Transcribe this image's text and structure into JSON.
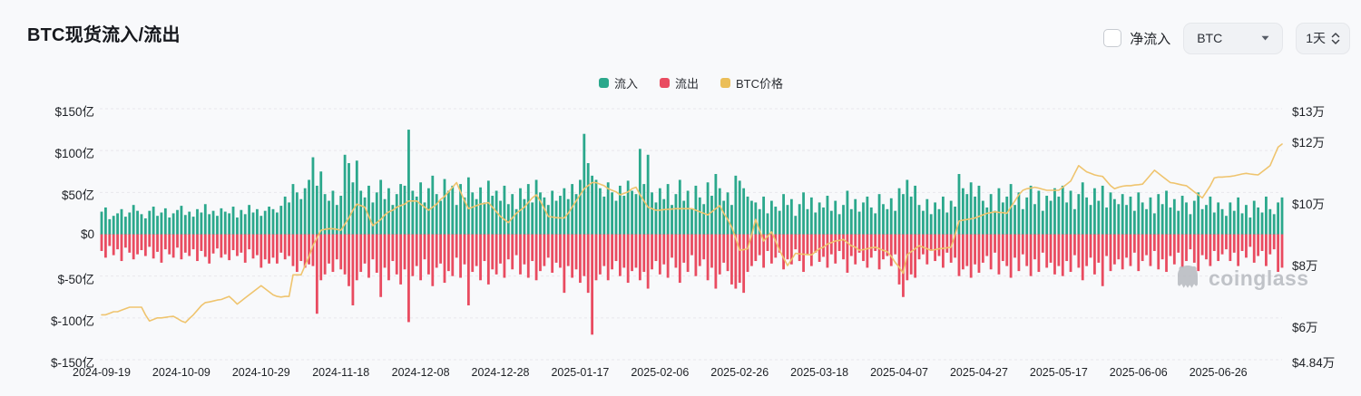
{
  "header": {
    "title": "BTC现货流入/流出",
    "net_flow_label": "净流入",
    "net_flow_checked": false,
    "coin_selector": "BTC",
    "interval_selector": "1天"
  },
  "legend": [
    {
      "label": "流入",
      "color": "#2BA88C"
    },
    {
      "label": "流出",
      "color": "#E94B60"
    },
    {
      "label": "BTC价格",
      "color": "#EBBE58"
    }
  ],
  "watermark": "coinglass",
  "colors": {
    "inflow": "#2BA88C",
    "outflow": "#E94B60",
    "price_line": "#EFC46E",
    "grid": "#e7e8ec",
    "background": "#f8f9fb"
  },
  "chart_data": {
    "type": "bar",
    "title": "BTC现货流入/流出",
    "start_date": "2024-09-19",
    "end_date": "2025-07-12",
    "interval_days": 1,
    "x_tick_labels": [
      "2024-09-19",
      "2024-10-09",
      "2024-10-29",
      "2024-11-18",
      "2024-12-08",
      "2024-12-28",
      "2025-01-17",
      "2025-02-06",
      "2025-02-26",
      "2025-03-18",
      "2025-04-07",
      "2025-04-27",
      "2025-05-17",
      "2025-06-06",
      "2025-06-26"
    ],
    "x_tick_days": [
      0,
      20,
      40,
      60,
      80,
      100,
      120,
      140,
      160,
      180,
      200,
      220,
      240,
      260,
      280
    ],
    "left_axis": {
      "unit": "亿 USD",
      "ticks": [
        "$150亿",
        "$100亿",
        "$50亿",
        "$0",
        "$-50亿",
        "$-100亿",
        "$-150亿"
      ],
      "values": [
        150,
        100,
        50,
        0,
        -50,
        -100,
        -150
      ],
      "range": [
        -150,
        150
      ],
      "grid": "dashed"
    },
    "right_axis": {
      "unit": "万 USD",
      "ticks": [
        "$13万",
        "$12万",
        "$10万",
        "$8万",
        "$6万",
        "$4.84万"
      ],
      "values": [
        13,
        12,
        10,
        8,
        6,
        4.84
      ],
      "range": [
        4.84,
        13
      ]
    },
    "legend_position": "top-center",
    "series": [
      {
        "name": "流入",
        "type": "bar",
        "axis": "left",
        "color": "#2BA88C",
        "values": [
          27,
          32,
          18,
          22,
          25,
          30,
          21,
          26,
          35,
          28,
          24,
          19,
          28,
          33,
          22,
          26,
          31,
          20,
          25,
          29,
          34,
          23,
          27,
          21,
          30,
          26,
          36,
          24,
          28,
          22,
          31,
          27,
          25,
          33,
          20,
          29,
          24,
          35,
          26,
          30,
          22,
          28,
          33,
          30,
          26,
          34,
          45,
          38,
          60,
          50,
          42,
          55,
          65,
          92,
          58,
          75,
          48,
          40,
          52,
          35,
          46,
          95,
          85,
          62,
          88,
          52,
          44,
          58,
          38,
          50,
          65,
          42,
          55,
          35,
          48,
          60,
          58,
          125,
          52,
          45,
          62,
          38,
          55,
          70,
          48,
          40,
          66,
          52,
          58,
          35,
          60,
          44,
          68,
          50,
          42,
          56,
          38,
          64,
          46,
          52,
          40,
          58,
          36,
          48,
          30,
          55,
          42,
          60,
          38,
          65,
          50,
          44,
          35,
          52,
          40,
          46,
          55,
          42,
          60,
          48,
          65,
          120,
          85,
          70,
          65,
          55,
          45,
          62,
          50,
          40,
          58,
          46,
          64,
          52,
          48,
          102,
          60,
          95,
          50,
          38,
          55,
          42,
          60,
          35,
          48,
          65,
          40,
          52,
          30,
          58,
          44,
          36,
          62,
          46,
          72,
          55,
          40,
          50,
          35,
          70,
          64,
          55,
          45,
          40,
          38,
          30,
          45,
          25,
          40,
          33,
          28,
          48,
          35,
          42,
          22,
          36,
          50,
          30,
          44,
          26,
          38,
          32,
          46,
          28,
          40,
          24,
          35,
          52,
          30,
          42,
          27,
          38,
          45,
          32,
          25,
          48,
          36,
          30,
          43,
          28,
          55,
          48,
          65,
          45,
          58,
          35,
          28,
          42,
          24,
          38,
          30,
          45,
          26,
          40,
          33,
          72,
          55,
          48,
          62,
          45,
          58,
          40,
          32,
          48,
          28,
          55,
          38,
          45,
          60,
          35,
          50,
          30,
          44,
          58,
          36,
          52,
          28,
          46,
          40,
          55,
          45,
          58,
          38,
          52,
          30,
          48,
          62,
          44,
          35,
          55,
          40,
          58,
          32,
          50,
          42,
          36,
          48,
          35,
          45,
          28,
          50,
          38,
          30,
          44,
          25,
          48,
          36,
          52,
          32,
          42,
          28,
          46,
          38,
          24,
          40,
          50,
          30,
          35,
          45,
          26,
          38,
          30,
          22,
          38,
          28,
          44,
          25,
          35,
          20,
          40,
          32,
          26,
          45,
          30,
          24,
          38,
          44
        ]
      },
      {
        "name": "流出",
        "type": "bar",
        "axis": "left",
        "color": "#E94B60",
        "values": [
          -20,
          -28,
          -14,
          -25,
          -18,
          -32,
          -16,
          -22,
          -30,
          -24,
          -19,
          -26,
          -15,
          -29,
          -21,
          -34,
          -18,
          -24,
          -28,
          -16,
          -30,
          -22,
          -26,
          -18,
          -32,
          -20,
          -27,
          -35,
          -23,
          -17,
          -28,
          -24,
          -31,
          -19,
          -26,
          -22,
          -34,
          -18,
          -29,
          -25,
          -40,
          -30,
          -35,
          -28,
          -35,
          -22,
          -30,
          -26,
          -38,
          -45,
          -32,
          -40,
          -36,
          -38,
          -95,
          -55,
          -48,
          -35,
          -45,
          -30,
          -42,
          -48,
          -62,
          -85,
          -55,
          -45,
          -35,
          -52,
          -30,
          -46,
          -75,
          -40,
          -55,
          -32,
          -48,
          -60,
          -42,
          -105,
          -50,
          -38,
          -55,
          -30,
          -48,
          -62,
          -40,
          -35,
          -58,
          -44,
          -50,
          -28,
          -52,
          -36,
          -85,
          -45,
          -38,
          -55,
          -32,
          -60,
          -42,
          -48,
          -35,
          -52,
          -30,
          -42,
          -25,
          -48,
          -36,
          -52,
          -32,
          -55,
          -44,
          -38,
          -28,
          -46,
          -34,
          -40,
          -70,
          -38,
          -52,
          -42,
          -58,
          -50,
          -70,
          -120,
          -55,
          -48,
          -38,
          -55,
          -42,
          -32,
          -50,
          -40,
          -58,
          -44,
          -40,
          -55,
          -45,
          -65,
          -42,
          -32,
          -48,
          -36,
          -52,
          -28,
          -40,
          -58,
          -34,
          -45,
          -25,
          -50,
          -38,
          -30,
          -55,
          -40,
          -65,
          -48,
          -34,
          -44,
          -60,
          -65,
          -58,
          -70,
          -45,
          -38,
          -32,
          -25,
          -40,
          -20,
          -35,
          -28,
          -22,
          -42,
          -30,
          -36,
          -18,
          -32,
          -45,
          -25,
          -38,
          -22,
          -33,
          -27,
          -40,
          -24,
          -35,
          -20,
          -30,
          -46,
          -26,
          -36,
          -22,
          -32,
          -40,
          -28,
          -20,
          -42,
          -30,
          -26,
          -38,
          -24,
          -60,
          -75,
          -55,
          -48,
          -52,
          -30,
          -24,
          -36,
          -20,
          -32,
          -26,
          -40,
          -22,
          -34,
          -28,
          -50,
          -42,
          -38,
          -52,
          -36,
          -46,
          -34,
          -26,
          -42,
          -22,
          -48,
          -32,
          -38,
          -52,
          -28,
          -44,
          -24,
          -38,
          -50,
          -30,
          -45,
          -22,
          -40,
          -34,
          -48,
          -38,
          -50,
          -32,
          -45,
          -25,
          -40,
          -55,
          -38,
          -28,
          -48,
          -34,
          -62,
          -26,
          -44,
          -36,
          -30,
          -42,
          -28,
          -38,
          -22,
          -44,
          -32,
          -25,
          -38,
          -20,
          -42,
          -30,
          -45,
          -26,
          -36,
          -22,
          -40,
          -32,
          -18,
          -34,
          -44,
          -25,
          -30,
          -38,
          -20,
          -32,
          -24,
          -18,
          -32,
          -22,
          -38,
          -20,
          -28,
          -15,
          -34,
          -26,
          -20,
          -38,
          -24,
          -18,
          -45,
          -40
        ]
      },
      {
        "name": "BTC价格",
        "type": "line",
        "axis": "right",
        "color": "#EFC46E",
        "values": [
          6.3,
          6.3,
          6.35,
          6.4,
          6.4,
          6.45,
          6.5,
          6.55,
          6.55,
          6.55,
          6.55,
          6.3,
          6.1,
          6.15,
          6.2,
          6.2,
          6.22,
          6.24,
          6.25,
          6.18,
          6.1,
          6.05,
          6.18,
          6.3,
          6.45,
          6.6,
          6.7,
          6.72,
          6.75,
          6.78,
          6.8,
          6.85,
          6.9,
          6.78,
          6.65,
          6.75,
          6.85,
          6.95,
          7.05,
          7.15,
          7.25,
          7.15,
          7.05,
          6.95,
          6.9,
          6.88,
          6.9,
          6.9,
          7.6,
          7.6,
          7.6,
          7.9,
          8.2,
          8.55,
          8.8,
          9.05,
          9.08,
          9.1,
          9.1,
          9.08,
          9.05,
          9.25,
          9.45,
          9.7,
          9.9,
          9.85,
          9.8,
          9.5,
          9.2,
          9.3,
          9.4,
          9.55,
          9.65,
          9.7,
          9.8,
          9.85,
          9.9,
          10.0,
          10.0,
          10.0,
          9.9,
          9.8,
          9.7,
          9.8,
          9.9,
          10.05,
          10.15,
          10.3,
          10.45,
          10.6,
          10.3,
          10.0,
          9.75,
          9.8,
          9.85,
          9.9,
          9.92,
          9.95,
          9.8,
          9.65,
          9.5,
          9.4,
          9.3,
          9.45,
          9.6,
          9.7,
          9.8,
          9.95,
          10.1,
          10.2,
          10.0,
          9.75,
          9.5,
          9.48,
          9.46,
          9.45,
          9.45,
          9.6,
          9.8,
          10.0,
          10.2,
          10.4,
          10.5,
          10.6,
          10.6,
          10.55,
          10.5,
          10.4,
          10.35,
          10.3,
          10.2,
          10.25,
          10.3,
          10.4,
          10.45,
          10.2,
          10.0,
          9.8,
          9.75,
          9.7,
          9.7,
          9.72,
          9.73,
          9.74,
          9.75,
          9.75,
          9.75,
          9.75,
          9.75,
          9.7,
          9.65,
          9.6,
          9.55,
          9.65,
          9.75,
          9.85,
          9.6,
          9.4,
          9.15,
          8.8,
          8.4,
          8.42,
          8.45,
          8.9,
          9.4,
          9.05,
          8.7,
          8.85,
          9.0,
          8.7,
          8.4,
          8.15,
          7.9,
          8.1,
          8.3,
          8.28,
          8.27,
          8.26,
          8.25,
          8.35,
          8.45,
          8.5,
          8.6,
          8.65,
          8.7,
          8.72,
          8.75,
          8.65,
          8.55,
          8.5,
          8.4,
          8.42,
          8.45,
          8.48,
          8.5,
          8.45,
          8.4,
          8.35,
          8.2,
          8.0,
          7.85,
          7.65,
          8.25,
          8.35,
          8.45,
          8.55,
          8.5,
          8.45,
          8.4,
          8.42,
          8.45,
          8.46,
          8.48,
          8.5,
          8.9,
          9.35,
          9.38,
          9.4,
          9.42,
          9.45,
          9.5,
          9.55,
          9.6,
          9.62,
          9.65,
          9.63,
          9.62,
          9.6,
          9.8,
          10.0,
          10.2,
          10.35,
          10.4,
          10.42,
          10.45,
          10.42,
          10.38,
          10.35,
          10.35,
          10.35,
          10.35,
          10.45,
          10.55,
          10.65,
          10.9,
          11.15,
          11.05,
          10.95,
          10.9,
          10.85,
          10.82,
          10.8,
          10.65,
          10.5,
          10.4,
          10.45,
          10.48,
          10.5,
          10.5,
          10.52,
          10.53,
          10.55,
          10.7,
          10.85,
          11.0,
          10.9,
          10.8,
          10.7,
          10.6,
          10.58,
          10.55,
          10.52,
          10.5,
          10.4,
          10.3,
          10.2,
          10.1,
          10.3,
          10.5,
          10.75,
          10.78,
          10.78,
          10.79,
          10.8,
          10.82,
          10.85,
          10.88,
          10.9,
          10.88,
          10.86,
          10.85,
          10.95,
          11.05,
          11.15,
          11.45,
          11.75,
          11.85
        ]
      }
    ]
  }
}
